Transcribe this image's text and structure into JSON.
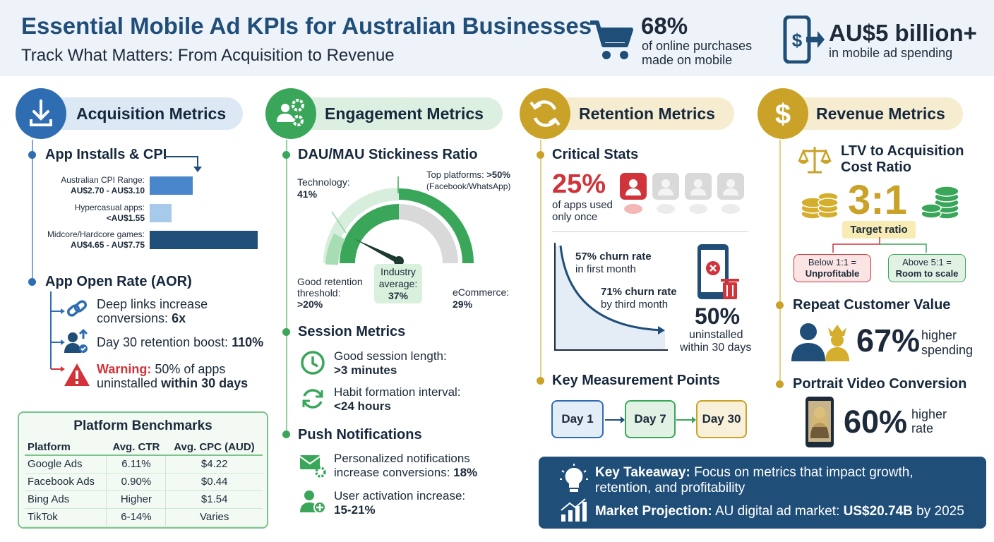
{
  "header": {
    "title": "Essential Mobile Ad KPIs for Australian Businesses",
    "subtitle": "Track What Matters: From Acquisition to Revenue",
    "stat1": {
      "value": "68%",
      "line1": "of online purchases",
      "line2": "made on mobile"
    },
    "stat2": {
      "value": "AU$5 billion+",
      "line1": "in mobile ad spending"
    }
  },
  "acquisition": {
    "heading": "Acquisition Metrics",
    "installs_title": "App Installs & CPI",
    "bars": [
      {
        "label": "Australian CPI Range:",
        "value": "AU$2.70 - AU$3.10",
        "fraction": 0.37
      },
      {
        "label": "Hypercasual apps:",
        "value": "<AU$1.55",
        "fraction": 0.19
      },
      {
        "label": "Midcore/Hardcore games:",
        "value": "AU$4.65 - AU$7.75",
        "fraction": 0.93
      }
    ],
    "aor_title": "App Open Rate (AOR)",
    "aor": [
      {
        "text": "Deep links increase",
        "text2": "conversions: ",
        "bold": "6x"
      },
      {
        "text": "Day 30 retention boost: ",
        "bold": "110%"
      }
    ],
    "warning": {
      "label": "Warning:",
      "text": " 50% of apps",
      "text2": "uninstalled ",
      "bold": "within 30 days"
    },
    "benchmarks": {
      "title": "Platform Benchmarks",
      "headers": [
        "Platform",
        "Avg. CTR",
        "Avg. CPC (AUD)"
      ],
      "rows": [
        [
          "Google Ads",
          "6.11%",
          "$4.22"
        ],
        [
          "Facebook Ads",
          "0.90%",
          "$0.44"
        ],
        [
          "Bing Ads",
          "Higher",
          "$1.54"
        ],
        [
          "TikTok",
          "6-14%",
          "Varies"
        ]
      ]
    }
  },
  "engagement": {
    "heading": "Engagement Metrics",
    "stickiness_title": "DAU/MAU Stickiness Ratio",
    "gauge": {
      "tech_label": "Technology:",
      "tech_value": "41%",
      "top_label": "Top platforms: ",
      "top_value": ">50%",
      "top_sub": "(Facebook/WhatsApp)",
      "good_label1": "Good retention",
      "good_label2": "threshold:",
      "good_value": ">20%",
      "industry_label1": "Industry",
      "industry_label2": "average:",
      "industry_value": "37%",
      "ecom_label": "eCommerce:",
      "ecom_value": "29%",
      "needle_percent": 37
    },
    "session_title": "Session Metrics",
    "session": [
      {
        "text": "Good session length:",
        "bold": ">3 minutes"
      },
      {
        "text": "Habit formation interval:",
        "bold": "<24 hours"
      }
    ],
    "push_title": "Push Notifications",
    "push": [
      {
        "text": "Personalized notifications",
        "text2": "increase conversions: ",
        "bold": "18%"
      },
      {
        "text": "User activation increase:",
        "bold": "15-21%"
      }
    ]
  },
  "retention": {
    "heading": "Retention Metrics",
    "critical_title": "Critical Stats",
    "once_value": "25%",
    "once_line1": "of apps used",
    "once_line2": "only once",
    "churn1": {
      "value": "57% churn rate",
      "label": "in first month"
    },
    "churn2": {
      "value": "71% churn rate",
      "label": "by third month"
    },
    "uninstall": {
      "value": "50%",
      "line1": "uninstalled",
      "line2": "within 30 days"
    },
    "points_title": "Key Measurement Points",
    "points": [
      "Day 1",
      "Day 7",
      "Day 30"
    ]
  },
  "revenue": {
    "heading": "Revenue Metrics",
    "ltv_title1": "LTV to Acquisition",
    "ltv_title2": "Cost Ratio",
    "ratio": "3:1",
    "target": "Target ratio",
    "below": {
      "line1": "Below 1:1 =",
      "line2": "Unprofitable"
    },
    "above": {
      "line1": "Above 5:1 =",
      "line2": "Room to scale"
    },
    "repeat_title": "Repeat Customer Value",
    "repeat_value": "67%",
    "repeat_line1": "higher",
    "repeat_line2": "spending",
    "portrait_title": "Portrait Video Conversion",
    "portrait_value": "60%",
    "portrait_line1": "higher",
    "portrait_line2": "rate"
  },
  "takeaway": {
    "label": "Key Takeaway:",
    "text": " Focus on metrics that impact growth,",
    "text2": "retention, and profitability",
    "proj_label": "Market Projection:",
    "proj_text": " AU digital ad market: ",
    "proj_bold": "US$20.74B",
    "proj_tail": " by 2025"
  },
  "colors": {
    "blue": "#2f6db3",
    "green": "#3aa65a",
    "gold": "#c9a227",
    "navy": "#1f4e79",
    "red": "#d0343a"
  }
}
